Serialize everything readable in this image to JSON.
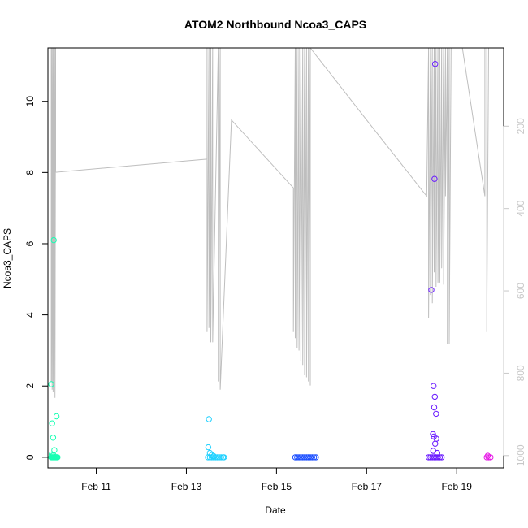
{
  "chart_data": {
    "type": "scatter",
    "title": "ATOM2 Northbound Ncoa3_CAPS",
    "xlabel": "Date",
    "ylabel": "Ncoa3_CAPS",
    "x_ticks": [
      "Feb 11",
      "Feb 13",
      "Feb 15",
      "Feb 17",
      "Feb 19"
    ],
    "y_ticks": [
      0,
      2,
      4,
      6,
      8,
      10
    ],
    "y2_ticks": [
      200,
      400,
      600,
      800,
      1000
    ],
    "xlim": [
      "2018-02-09T22:14",
      "2018-02-20T01:00"
    ],
    "ylim": [
      -0.3,
      11.5
    ],
    "y2lim": [
      1030,
      10
    ],
    "y2_reversed": true,
    "grid": false,
    "legend": "none",
    "colors": {
      "secondary_line": "#bebebe",
      "right_axis": "#c8c8c8",
      "axes": "#000000"
    },
    "series": [
      {
        "color": "#19ffb3",
        "points": [
          [
            "2018-02-10T00:00",
            2.05
          ],
          [
            "2018-02-10T00:30",
            0.95
          ],
          [
            "2018-02-10T01:00",
            0.55
          ],
          [
            "2018-02-10T01:20",
            6.1
          ],
          [
            "2018-02-10T01:40",
            0.2
          ],
          [
            "2018-02-10T02:50",
            1.15
          ],
          [
            "2018-02-10T00:15",
            0.08
          ],
          [
            "2018-02-10T00:45",
            0.04
          ],
          [
            "2018-02-10T01:10",
            0.06
          ],
          [
            "2018-02-10T00:00",
            0
          ],
          [
            "2018-02-10T00:20",
            0
          ],
          [
            "2018-02-10T00:40",
            0
          ],
          [
            "2018-02-10T01:00",
            0
          ],
          [
            "2018-02-10T01:20",
            0
          ],
          [
            "2018-02-10T01:40",
            0
          ],
          [
            "2018-02-10T02:00",
            0
          ],
          [
            "2018-02-10T02:20",
            0
          ],
          [
            "2018-02-10T02:40",
            0
          ],
          [
            "2018-02-10T03:00",
            0
          ],
          [
            "2018-02-10T03:20",
            0
          ]
        ]
      },
      {
        "color": "#1fd1ff",
        "points": [
          [
            "2018-02-13T12:00",
            1.07
          ],
          [
            "2018-02-13T11:40",
            0.28
          ],
          [
            "2018-02-13T12:30",
            0.12
          ],
          [
            "2018-02-13T13:30",
            0.06
          ],
          [
            "2018-02-13T14:30",
            0.03
          ],
          [
            "2018-02-13T11:30",
            0
          ],
          [
            "2018-02-13T12:30",
            0
          ],
          [
            "2018-02-13T13:30",
            0
          ],
          [
            "2018-02-13T14:30",
            0
          ],
          [
            "2018-02-13T15:30",
            0
          ],
          [
            "2018-02-13T16:30",
            0
          ],
          [
            "2018-02-13T17:30",
            0
          ],
          [
            "2018-02-13T18:30",
            0
          ],
          [
            "2018-02-13T19:30",
            0
          ],
          [
            "2018-02-13T20:00",
            0
          ]
        ]
      },
      {
        "color": "#1a4dff",
        "points": [
          [
            "2018-02-15T10:00",
            0
          ],
          [
            "2018-02-15T11:00",
            0
          ],
          [
            "2018-02-15T12:00",
            0
          ],
          [
            "2018-02-15T13:00",
            0
          ],
          [
            "2018-02-15T14:00",
            0
          ],
          [
            "2018-02-15T15:00",
            0
          ],
          [
            "2018-02-15T16:00",
            0
          ],
          [
            "2018-02-15T17:00",
            0
          ],
          [
            "2018-02-15T18:00",
            0
          ],
          [
            "2018-02-15T19:00",
            0
          ],
          [
            "2018-02-15T20:00",
            0
          ],
          [
            "2018-02-15T21:00",
            0
          ]
        ]
      },
      {
        "color": "#6a1aff",
        "points": [
          [
            "2018-02-18T10:30",
            4.7
          ],
          [
            "2018-02-18T12:30",
            11.05
          ],
          [
            "2018-02-18T12:10",
            7.82
          ],
          [
            "2018-02-18T11:40",
            2.0
          ],
          [
            "2018-02-18T12:20",
            1.7
          ],
          [
            "2018-02-18T12:00",
            1.4
          ],
          [
            "2018-02-18T13:00",
            1.22
          ],
          [
            "2018-02-18T11:20",
            0.65
          ],
          [
            "2018-02-18T11:50",
            0.58
          ],
          [
            "2018-02-18T13:10",
            0.52
          ],
          [
            "2018-02-18T12:30",
            0.38
          ],
          [
            "2018-02-18T11:30",
            0.18
          ],
          [
            "2018-02-18T13:40",
            0.12
          ],
          [
            "2018-02-18T09:00",
            0
          ],
          [
            "2018-02-18T10:00",
            0
          ],
          [
            "2018-02-18T11:00",
            0
          ],
          [
            "2018-02-18T12:00",
            0
          ],
          [
            "2018-02-18T13:00",
            0
          ],
          [
            "2018-02-18T14:00",
            0
          ],
          [
            "2018-02-18T15:00",
            0
          ],
          [
            "2018-02-18T16:00",
            0
          ]
        ]
      },
      {
        "color": "#e619e6",
        "points": [
          [
            "2018-02-19T16:30",
            0.04
          ],
          [
            "2018-02-19T16:00",
            0
          ],
          [
            "2018-02-19T17:00",
            0
          ],
          [
            "2018-02-19T18:00",
            0
          ]
        ]
      }
    ],
    "secondary_series": {
      "axis": "right",
      "color": "#bebebe",
      "points": [
        [
          "2018-02-10T00:00",
          10
        ],
        [
          "2018-02-10T00:00",
          820
        ],
        [
          "2018-02-10T00:30",
          10
        ],
        [
          "2018-02-10T00:30",
          840
        ],
        [
          "2018-02-10T01:00",
          10
        ],
        [
          "2018-02-10T01:00",
          845
        ],
        [
          "2018-02-10T01:30",
          10
        ],
        [
          "2018-02-10T01:30",
          855
        ],
        [
          "2018-02-10T02:00",
          10
        ],
        [
          "2018-02-10T02:00",
          860
        ],
        [
          "2018-02-10T02:20",
          10
        ],
        [
          "2018-02-10T02:20",
          312
        ],
        [
          "2018-02-13T11:00",
          280
        ],
        [
          "2018-02-13T11:00",
          10
        ],
        [
          "2018-02-13T11:00",
          700
        ],
        [
          "2018-02-13T12:00",
          10
        ],
        [
          "2018-02-13T12:00",
          690
        ],
        [
          "2018-02-13T13:00",
          10
        ],
        [
          "2018-02-13T13:00",
          725
        ],
        [
          "2018-02-13T14:00",
          10
        ],
        [
          "2018-02-13T14:00",
          725
        ],
        [
          "2018-02-13T17:00",
          10
        ],
        [
          "2018-02-13T17:00",
          820
        ],
        [
          "2018-02-13T18:00",
          10
        ],
        [
          "2018-02-13T18:00",
          840
        ],
        [
          "2018-02-14T00:00",
          185
        ],
        [
          "2018-02-15T09:00",
          350
        ],
        [
          "2018-02-15T09:00",
          700
        ],
        [
          "2018-02-15T10:00",
          10
        ],
        [
          "2018-02-15T10:00",
          715
        ],
        [
          "2018-02-15T11:00",
          10
        ],
        [
          "2018-02-15T11:00",
          740
        ],
        [
          "2018-02-15T12:00",
          10
        ],
        [
          "2018-02-15T12:00",
          745
        ],
        [
          "2018-02-15T13:00",
          10
        ],
        [
          "2018-02-15T13:00",
          770
        ],
        [
          "2018-02-15T14:00",
          10
        ],
        [
          "2018-02-15T14:00",
          780
        ],
        [
          "2018-02-15T15:00",
          10
        ],
        [
          "2018-02-15T15:00",
          805
        ],
        [
          "2018-02-15T16:00",
          10
        ],
        [
          "2018-02-15T16:00",
          810
        ],
        [
          "2018-02-15T17:00",
          10
        ],
        [
          "2018-02-15T17:00",
          820
        ],
        [
          "2018-02-15T18:00",
          10
        ],
        [
          "2018-02-15T18:00",
          830
        ],
        [
          "2018-02-15T18:00",
          10
        ],
        [
          "2018-02-17T00:00",
          185
        ],
        [
          "2018-02-18T08:00",
          370
        ],
        [
          "2018-02-18T09:00",
          10
        ],
        [
          "2018-02-18T09:00",
          665
        ],
        [
          "2018-02-18T10:00",
          10
        ],
        [
          "2018-02-18T10:00",
          610
        ],
        [
          "2018-02-18T11:00",
          10
        ],
        [
          "2018-02-18T11:00",
          630
        ],
        [
          "2018-02-18T12:00",
          10
        ],
        [
          "2018-02-18T12:00",
          555
        ],
        [
          "2018-02-18T13:00",
          10
        ],
        [
          "2018-02-18T13:00",
          590
        ],
        [
          "2018-02-18T14:00",
          10
        ],
        [
          "2018-02-18T14:00",
          580
        ],
        [
          "2018-02-18T15:00",
          10
        ],
        [
          "2018-02-18T15:00",
          580
        ],
        [
          "2018-02-18T16:00",
          10
        ],
        [
          "2018-02-18T16:00",
          545
        ],
        [
          "2018-02-18T17:00",
          10
        ],
        [
          "2018-02-18T17:00",
          585
        ],
        [
          "2018-02-18T18:00",
          10
        ],
        [
          "2018-02-18T18:00",
          370
        ],
        [
          "2018-02-18T19:00",
          10
        ],
        [
          "2018-02-18T19:00",
          730
        ],
        [
          "2018-02-18T20:00",
          10
        ],
        [
          "2018-02-18T20:00",
          730
        ],
        [
          "2018-02-18T21:00",
          10
        ],
        [
          "2018-02-19T03:00",
          10
        ],
        [
          "2018-02-19T15:00",
          370
        ],
        [
          "2018-02-19T15:00",
          10
        ],
        [
          "2018-02-19T16:00",
          10
        ],
        [
          "2018-02-19T16:00",
          700
        ],
        [
          "2018-02-19T17:00",
          10
        ]
      ]
    }
  }
}
